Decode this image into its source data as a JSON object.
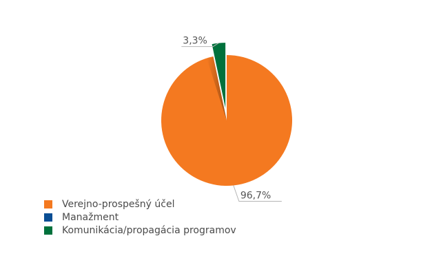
{
  "chart_data": {
    "type": "pie",
    "title": "",
    "categories": [
      "Verejno-prospešný účel",
      "Manažment",
      "Komunikácia/propagácia programov"
    ],
    "values": [
      96.7,
      0,
      3.3
    ],
    "data_labels": [
      "96,7%",
      "",
      "3,3%"
    ],
    "colors": [
      "#f47920",
      "#0a4e94",
      "#00713c"
    ],
    "start": "12-o'clock",
    "direction": "clockwise",
    "exploded_slice": "Komunikácia/propagácia programov",
    "legend_position": "bottom-left",
    "legend": [
      {
        "label": "Verejno-prospešný účel",
        "color": "#f47920"
      },
      {
        "label": "Manažment",
        "color": "#0a4e94"
      },
      {
        "label": "Komunikácia/propagácia programov",
        "color": "#00713c"
      }
    ]
  }
}
